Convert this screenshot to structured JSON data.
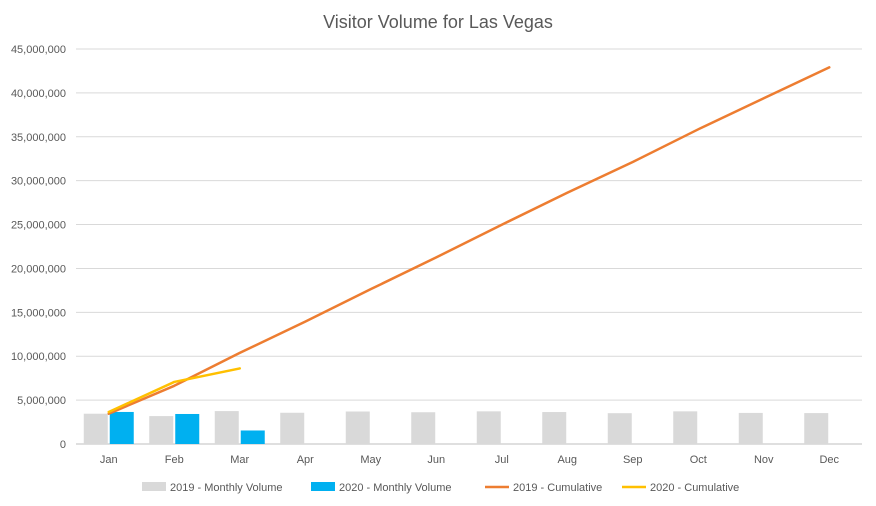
{
  "chart_data": {
    "type": "bar",
    "title": "Visitor Volume for Las Vegas",
    "categories": [
      "Jan",
      "Feb",
      "Mar",
      "Apr",
      "May",
      "Jun",
      "Jul",
      "Aug",
      "Sep",
      "Oct",
      "Nov",
      "Dec"
    ],
    "ylim": [
      0,
      45000000
    ],
    "yticks": [
      0,
      5000000,
      10000000,
      15000000,
      20000000,
      25000000,
      30000000,
      35000000,
      40000000,
      45000000
    ],
    "ytick_labels": [
      "0",
      "5,000,000",
      "10,000,000",
      "15,000,000",
      "20,000,000",
      "25,000,000",
      "30,000,000",
      "35,000,000",
      "40,000,000",
      "45,000,000"
    ],
    "grid": true,
    "legend_position": "bottom",
    "series": [
      {
        "name": "2019 - Monthly Volume",
        "kind": "bar",
        "color": "#d9d9d9",
        "values": [
          3450000,
          3180000,
          3750000,
          3560000,
          3700000,
          3620000,
          3720000,
          3640000,
          3510000,
          3720000,
          3540000,
          3520000
        ]
      },
      {
        "name": "2020 - Monthly Volume",
        "kind": "bar",
        "color": "#00b0f0",
        "values": [
          3650000,
          3420000,
          1540000,
          null,
          null,
          null,
          null,
          null,
          null,
          null,
          null,
          null
        ]
      },
      {
        "name": "2019 - Cumulative",
        "kind": "line",
        "color": "#ed7d31",
        "values": [
          3450000,
          6630000,
          10380000,
          13940000,
          17640000,
          21260000,
          24980000,
          28620000,
          32130000,
          35850000,
          39390000,
          42910000
        ]
      },
      {
        "name": "2020 - Cumulative",
        "kind": "line",
        "color": "#ffc000",
        "values": [
          3650000,
          7070000,
          8610000,
          null,
          null,
          null,
          null,
          null,
          null,
          null,
          null,
          null
        ]
      }
    ]
  }
}
